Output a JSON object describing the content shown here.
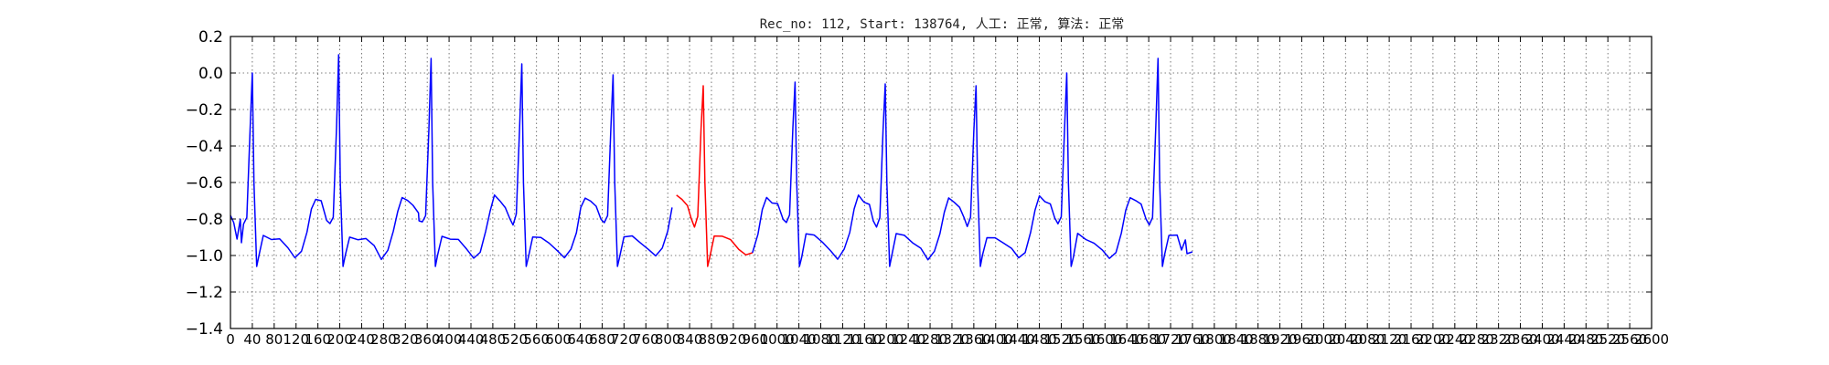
{
  "chart_data": {
    "type": "line",
    "title": "Rec_no: 112, Start: 138764, 人工: 正常, 算法: 正常",
    "xlabel": "",
    "ylabel": "",
    "xlim": [
      0,
      2600
    ],
    "ylim": [
      -1.4,
      0.2
    ],
    "grid": true,
    "x_tick_step": 40,
    "x_tick_labels": [
      "0",
      "40",
      "80",
      "120",
      "160",
      "200",
      "240",
      "280",
      "320",
      "360",
      "400",
      "440",
      "480",
      "520",
      "560",
      "600",
      "640",
      "680",
      "720",
      "760",
      "800",
      "840",
      "880",
      "920",
      "960",
      "1000",
      "1040",
      "1080",
      "1120",
      "1160",
      "1200",
      "1240",
      "1280",
      "1320",
      "1360",
      "1400",
      "1440",
      "1480",
      "1520",
      "1560",
      "1600",
      "1640",
      "1680",
      "1720",
      "1760",
      "1800",
      "1840",
      "1880",
      "1920",
      "1960",
      "2000",
      "2040",
      "2080",
      "2120",
      "2160",
      "2200",
      "2240",
      "2280",
      "2320",
      "2360",
      "2400",
      "2440",
      "2480",
      "2520",
      "2560",
      "2600"
    ],
    "y_ticks": [
      0.2,
      0.0,
      -0.2,
      -0.4,
      -0.6,
      -0.8,
      -1.0,
      -1.2,
      -1.4
    ],
    "y_tick_labels": [
      "0.2",
      "0.0",
      "−0.2",
      "−0.4",
      "−0.6",
      "−0.8",
      "−1.0",
      "−1.2",
      "−1.4"
    ],
    "signal_end_x": 1760,
    "beat_template": [
      [
        -22,
        -0.8
      ],
      [
        -16,
        -0.83
      ],
      [
        -10,
        -0.78
      ],
      [
        -4,
        -0.3
      ],
      [
        0,
        -0.01
      ],
      [
        3,
        -0.6
      ],
      [
        8,
        -1.06
      ],
      [
        12,
        -1.0
      ],
      [
        20,
        -0.89
      ],
      [
        35,
        -0.9
      ],
      [
        50,
        -0.92
      ],
      [
        65,
        -0.96
      ],
      [
        78,
        -1.01
      ],
      [
        90,
        -0.97
      ],
      [
        100,
        -0.88
      ],
      [
        108,
        -0.75
      ],
      [
        116,
        -0.68
      ],
      [
        126,
        -0.7
      ],
      [
        136,
        -0.73
      ],
      [
        146,
        -0.76
      ],
      [
        156,
        -0.7
      ],
      [
        162,
        -0.63
      ],
      [
        168,
        -0.7
      ],
      [
        176,
        -0.8
      ],
      [
        180,
        -0.81
      ]
    ],
    "series": [
      {
        "color": "#0000ff",
        "beats": [
          {
            "r_x": 40,
            "amp": 0.0
          },
          {
            "r_x": 198,
            "amp": 0.1
          },
          {
            "r_x": 367,
            "amp": 0.08
          },
          {
            "r_x": 533,
            "amp": 0.05
          },
          {
            "r_x": 700,
            "amp": -0.01
          },
          {
            "r_x": 1033,
            "amp": -0.05
          },
          {
            "r_x": 1198,
            "amp": -0.06
          },
          {
            "r_x": 1364,
            "amp": -0.07
          },
          {
            "r_x": 1530,
            "amp": 0.0
          },
          {
            "r_x": 1697,
            "amp": 0.08
          }
        ]
      },
      {
        "color": "#ff0000",
        "beats": [
          {
            "r_x": 865,
            "amp": -0.07
          }
        ],
        "x_range": [
          815,
          955
        ]
      }
    ]
  }
}
